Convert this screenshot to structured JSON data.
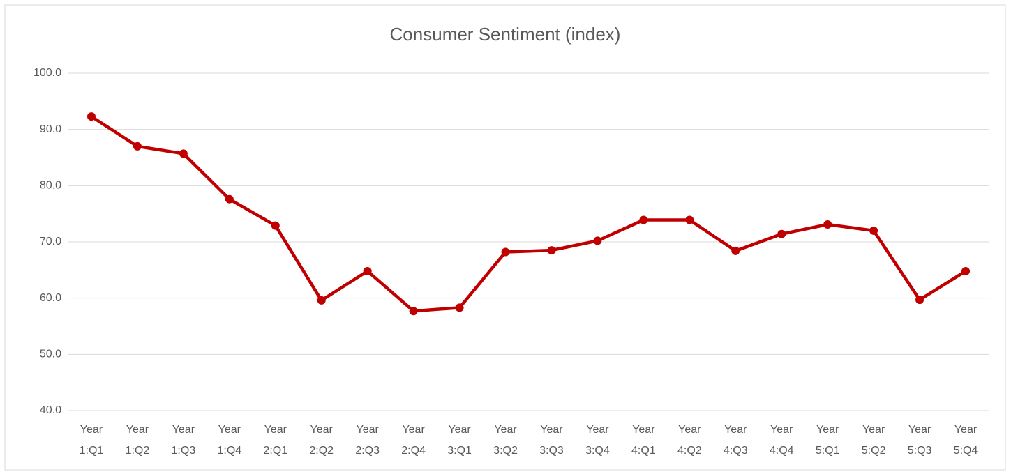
{
  "chart_data": {
    "type": "line",
    "title": "Consumer Sentiment (index)",
    "categories": [
      "Year 1:Q1",
      "Year 1:Q2",
      "Year 1:Q3",
      "Year 1:Q4",
      "Year 2:Q1",
      "Year 2:Q2",
      "Year 2:Q3",
      "Year 2:Q4",
      "Year 3:Q1",
      "Year 3:Q2",
      "Year 3:Q3",
      "Year 3:Q4",
      "Year 4:Q1",
      "Year 4:Q2",
      "Year 4:Q3",
      "Year 4:Q4",
      "Year 5:Q1",
      "Year 5:Q2",
      "Year 5:Q3",
      "Year 5:Q4"
    ],
    "values": [
      92.3,
      87.0,
      85.7,
      77.6,
      72.9,
      59.6,
      64.8,
      57.7,
      58.3,
      68.2,
      68.5,
      70.2,
      73.9,
      73.9,
      68.4,
      71.4,
      73.1,
      72.0,
      59.7,
      64.8
    ],
    "color": "#c00000",
    "ylim": [
      40,
      100
    ],
    "yticks": [
      {
        "value": 40,
        "label": "40.0"
      },
      {
        "value": 50,
        "label": "50.0"
      },
      {
        "value": 60,
        "label": "60.0"
      },
      {
        "value": 70,
        "label": "70.0"
      },
      {
        "value": 80,
        "label": "80.0"
      },
      {
        "value": 90,
        "label": "90.0"
      },
      {
        "value": 100,
        "label": "100.0"
      }
    ],
    "grid": true
  }
}
